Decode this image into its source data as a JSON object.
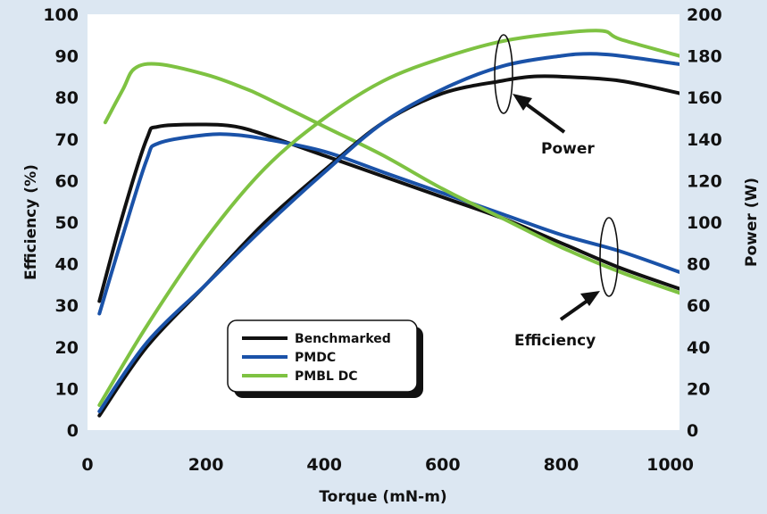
{
  "chart_data": {
    "type": "line",
    "xlabel": "Torque (mN-m)",
    "ylabel_left": "Efficiency (%)",
    "ylabel_right": "Power (W)",
    "xlim": [
      0,
      1000
    ],
    "ylim_left": [
      0,
      100
    ],
    "ylim_right": [
      0,
      200
    ],
    "x_ticks": [
      0,
      200,
      400,
      600,
      800,
      1000
    ],
    "y_ticks_left": [
      0,
      10,
      20,
      30,
      40,
      50,
      60,
      70,
      80,
      90,
      100
    ],
    "y_ticks_right": [
      0,
      20,
      40,
      60,
      80,
      100,
      120,
      140,
      160,
      180,
      200
    ],
    "grid": false,
    "legend_position": "bottom-left",
    "legend": [
      "Benchmarked",
      "PMDC",
      "PMBL DC"
    ],
    "colors": {
      "Benchmarked": "#111111",
      "PMDC": "#1a52a8",
      "PMBL DC": "#7ec242",
      "background": "#dce7f2"
    },
    "annotations": [
      "Power",
      "Efficiency"
    ],
    "series": [
      {
        "name": "Benchmarked",
        "kind": "efficiency",
        "axis": "left",
        "x": [
          20,
          60,
          100,
          120,
          200,
          250,
          300,
          400,
          500,
          600,
          700,
          800,
          900,
          1000
        ],
        "y": [
          31,
          52,
          70,
          73,
          73.5,
          73,
          71,
          66,
          61,
          56,
          51,
          45,
          39,
          34
        ]
      },
      {
        "name": "PMDC",
        "kind": "efficiency",
        "axis": "left",
        "x": [
          20,
          60,
          100,
          120,
          200,
          250,
          300,
          400,
          500,
          600,
          700,
          800,
          900,
          1000
        ],
        "y": [
          28,
          47,
          65,
          69,
          71,
          71,
          70,
          67,
          62,
          57,
          52,
          47,
          43,
          38
        ]
      },
      {
        "name": "PMBL DC",
        "kind": "efficiency",
        "axis": "left",
        "x": [
          30,
          60,
          80,
          120,
          200,
          260,
          300,
          400,
          500,
          600,
          700,
          800,
          900,
          1000
        ],
        "y": [
          74,
          82,
          87,
          88,
          85.5,
          82.5,
          80,
          73,
          66,
          58,
          51,
          44,
          38,
          33
        ]
      },
      {
        "name": "Benchmarked",
        "kind": "power",
        "axis": "right",
        "x": [
          20,
          100,
          200,
          300,
          400,
          500,
          600,
          700,
          750,
          800,
          900,
          1000
        ],
        "y": [
          7,
          40,
          70,
          100,
          125,
          148,
          162,
          168,
          170,
          170,
          168,
          162
        ]
      },
      {
        "name": "PMDC",
        "kind": "power",
        "axis": "right",
        "x": [
          20,
          100,
          200,
          300,
          400,
          500,
          600,
          700,
          800,
          850,
          900,
          1000
        ],
        "y": [
          9,
          42,
          70,
          98,
          124,
          148,
          164,
          175,
          180,
          181,
          180,
          176
        ]
      },
      {
        "name": "PMBL DC",
        "kind": "power",
        "axis": "right",
        "x": [
          20,
          100,
          200,
          300,
          400,
          500,
          600,
          700,
          800,
          870,
          900,
          1000
        ],
        "y": [
          12,
          50,
          92,
          126,
          150,
          168,
          179,
          187,
          191,
          192,
          188,
          180
        ]
      }
    ]
  }
}
